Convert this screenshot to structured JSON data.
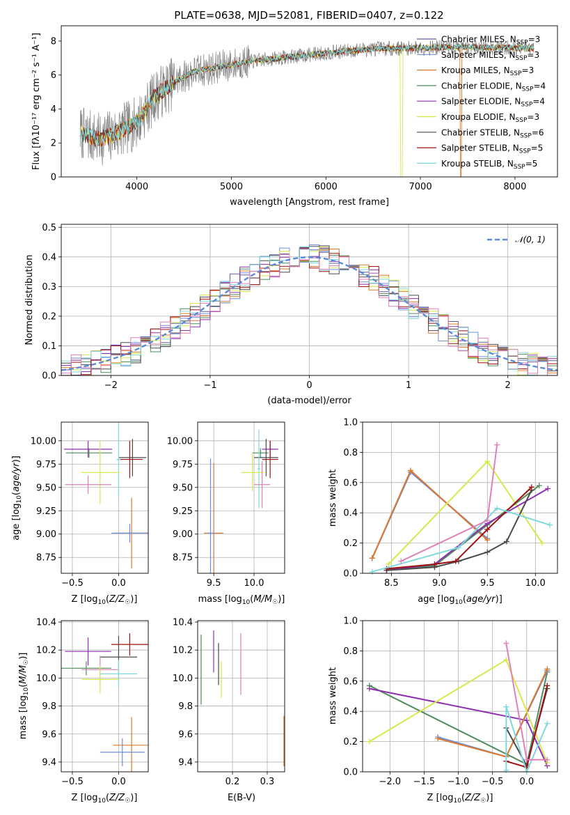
{
  "figure_title": "PLATE=0638, MJD=52081, FIBERID=0407, z=0.122",
  "legend_entries": [
    {
      "name": "Chabrier MILES, N_SSP=3",
      "base": "Chabrier MILES, N",
      "sub": "SSP",
      "tail": "=3",
      "color": "#5f5f9f"
    },
    {
      "name": "Salpeter MILES, N_SSP=3",
      "base": "Salpeter MILES, N",
      "sub": "SSP",
      "tail": "=3",
      "color": "#6b8ee0"
    },
    {
      "name": "Kroupa MILES, N_SSP=3",
      "base": "Kroupa MILES, N",
      "sub": "SSP",
      "tail": "=3",
      "color": "#e0782a"
    },
    {
      "name": "Chabrier ELODIE, N_SSP=4",
      "base": "Chabrier ELODIE, N",
      "sub": "SSP",
      "tail": "=4",
      "color": "#4f8a5a"
    },
    {
      "name": "Salpeter ELODIE, N_SSP=4",
      "base": "Salpeter ELODIE, N",
      "sub": "SSP",
      "tail": "=4",
      "color": "#8e2fb0"
    },
    {
      "name": "Kroupa ELODIE, N_SSP=3",
      "base": "Kroupa ELODIE, N",
      "sub": "SSP",
      "tail": "=3",
      "color": "#d6e84a"
    },
    {
      "name": "Chabrier STELIB, N_SSP=6",
      "base": "Chabrier STELIB, N",
      "sub": "SSP",
      "tail": "=6",
      "color": "#4a4a4a"
    },
    {
      "name": "Salpeter STELIB, N_SSP=5",
      "base": "Salpeter STELIB, N",
      "sub": "SSP",
      "tail": "=5",
      "color": "#a01010"
    },
    {
      "name": "Kroupa STELIB, N_SSP=5",
      "base": "Kroupa STELIB, N",
      "sub": "SSP",
      "tail": "=5",
      "color": "#7fd8dc"
    }
  ],
  "extra_colors": {
    "data": "#808080",
    "pink": "#e07fb8"
  },
  "chart_data": [
    {
      "id": "spectrum",
      "type": "line",
      "title": "PLATE=0638, MJD=52081, FIBERID=0407, z=0.122",
      "xlabel": "wavelength [Angstrom, rest frame]",
      "ylabel": "Flux [f_λ 10^-17 erg cm^-2 s^-1 A^-1]",
      "xlim": [
        3200,
        8450
      ],
      "ylim": [
        0,
        8.9
      ],
      "xticks": [
        4000,
        5000,
        6000,
        7000,
        8000
      ],
      "yticks": [
        0,
        2,
        4,
        6,
        8
      ],
      "continuum": {
        "x": [
          3400,
          3600,
          3800,
          4000,
          4200,
          4400,
          4600,
          4800,
          5000,
          5200,
          5500,
          6000,
          6500,
          7000,
          7500,
          8000,
          8200
        ],
        "y": [
          2.6,
          2.2,
          2.6,
          3.2,
          4.8,
          5.6,
          6.2,
          6.4,
          6.6,
          6.8,
          7.0,
          7.3,
          7.55,
          7.6,
          7.65,
          7.6,
          7.55
        ]
      },
      "grid": false
    },
    {
      "id": "residuals",
      "type": "step",
      "xlabel": "(data-model)/error",
      "ylabel": "Normed distribution",
      "xlim": [
        -2.5,
        2.5
      ],
      "ylim": [
        0,
        0.51
      ],
      "xticks": [
        -2,
        -1,
        0,
        1,
        2
      ],
      "yticks": [
        0.0,
        0.1,
        0.2,
        0.3,
        0.4,
        0.5
      ],
      "gauss_label": "𝒩(0, 1)",
      "grid": true
    },
    {
      "id": "age_vs_Z",
      "type": "errorbar",
      "xlabel": "Z [log10(Z/Z☉)]",
      "ylabel": "age [log10(age/yr)]",
      "xlim": [
        -0.62,
        0.32
      ],
      "ylim": [
        8.58,
        10.2
      ],
      "xticks": [
        -0.5,
        0.0
      ],
      "yticks": [
        8.75,
        9.0,
        9.25,
        9.5,
        9.75,
        10.0
      ],
      "points": [
        {
          "color": "#8e2fb0",
          "x": -0.33,
          "y": 9.91,
          "xerr": 0.26,
          "yerr": 0.09
        },
        {
          "color": "#4f8a5a",
          "x": -0.32,
          "y": 9.87,
          "xerr": 0.25,
          "yerr": 0.05
        },
        {
          "color": "#4a4a4a",
          "x": 0.15,
          "y": 9.82,
          "xerr": 0.15,
          "yerr": 0.2
        },
        {
          "color": "#a01010",
          "x": 0.12,
          "y": 9.8,
          "xerr": 0.14,
          "yerr": 0.2
        },
        {
          "color": "#7fd8dc",
          "x": 0.0,
          "y": 9.8,
          "xerr": 0.02,
          "yerr": 0.4
        },
        {
          "color": "#d6e84a",
          "x": -0.2,
          "y": 9.66,
          "xerr": 0.2,
          "yerr": 0.34
        },
        {
          "color": "#e07fb8",
          "x": -0.33,
          "y": 9.53,
          "xerr": 0.25,
          "yerr": 0.1
        },
        {
          "color": "#e0782a",
          "x": 0.14,
          "y": 9.01,
          "xerr": 0.18,
          "yerr": 0.38
        },
        {
          "color": "#6b8ee0",
          "x": 0.12,
          "y": 9.01,
          "xerr": 0.2,
          "yerr": 0.1
        }
      ]
    },
    {
      "id": "age_vs_mass",
      "type": "errorbar",
      "xlabel": "mass [log10(M/M☉)]",
      "ylabel": "",
      "xlim": [
        9.3,
        10.38
      ],
      "ylim": [
        8.58,
        10.2
      ],
      "xticks": [
        9.5,
        10.0
      ],
      "yticks": [
        8.75,
        9.0,
        9.25,
        9.5,
        9.75,
        10.0
      ],
      "points": [
        {
          "color": "#8e2fb0",
          "x": 10.2,
          "y": 9.91,
          "xerr": 0.1,
          "yerr": 0.09
        },
        {
          "color": "#4f8a5a",
          "x": 10.08,
          "y": 9.87,
          "xerr": 0.1,
          "yerr": 0.05
        },
        {
          "color": "#4a4a4a",
          "x": 10.15,
          "y": 9.82,
          "xerr": 0.15,
          "yerr": 0.2
        },
        {
          "color": "#a01010",
          "x": 10.2,
          "y": 9.8,
          "xerr": 0.1,
          "yerr": 0.2
        },
        {
          "color": "#7fd8dc",
          "x": 10.06,
          "y": 9.7,
          "xerr": 0.02,
          "yerr": 0.42
        },
        {
          "color": "#d6e84a",
          "x": 9.98,
          "y": 9.66,
          "xerr": 0.14,
          "yerr": 0.2
        },
        {
          "color": "#e07fb8",
          "x": 10.1,
          "y": 9.53,
          "xerr": 0.1,
          "yerr": 0.25
        },
        {
          "color": "#e0782a",
          "x": 9.5,
          "y": 9.01,
          "xerr": 0.12,
          "yerr": 0.75
        },
        {
          "color": "#6b8ee0",
          "x": 9.46,
          "y": 9.01,
          "xerr": 0.04,
          "yerr": 0.8
        }
      ]
    },
    {
      "id": "weight_vs_age",
      "type": "line",
      "xlabel": "age [log10(age/yr)]",
      "ylabel": "mass weight",
      "xlim": [
        8.2,
        10.23
      ],
      "ylim": [
        0,
        1
      ],
      "xticks": [
        8.5,
        9.0,
        9.5,
        10.0
      ],
      "yticks": [
        0.0,
        0.2,
        0.4,
        0.6,
        0.8,
        1.0
      ],
      "series": [
        {
          "color": "#5f5f9f",
          "x": [
            8.3,
            8.7,
            9.5
          ],
          "y": [
            0.1,
            0.67,
            0.23
          ]
        },
        {
          "color": "#6b8ee0",
          "x": [
            8.3,
            8.7,
            9.5
          ],
          "y": [
            0.1,
            0.67,
            0.23
          ]
        },
        {
          "color": "#e0782a",
          "x": [
            8.3,
            8.7,
            9.5
          ],
          "y": [
            0.1,
            0.68,
            0.22
          ]
        },
        {
          "color": "#d6e84a",
          "x": [
            8.47,
            9.5,
            10.07
          ],
          "y": [
            0.06,
            0.74,
            0.2
          ]
        },
        {
          "color": "#4f8a5a",
          "x": [
            8.45,
            8.95,
            9.5,
            10.04
          ],
          "y": [
            0.02,
            0.05,
            0.32,
            0.58
          ]
        },
        {
          "color": "#8e2fb0",
          "x": [
            8.45,
            8.95,
            9.5,
            10.13
          ],
          "y": [
            0.02,
            0.06,
            0.33,
            0.56
          ]
        },
        {
          "color": "#4a4a4a",
          "x": [
            8.45,
            8.95,
            9.2,
            9.5,
            9.7,
            9.96
          ],
          "y": [
            0.02,
            0.04,
            0.08,
            0.14,
            0.21,
            0.55
          ]
        },
        {
          "color": "#a01010",
          "x": [
            8.45,
            8.95,
            9.17,
            9.5,
            9.96
          ],
          "y": [
            0.03,
            0.06,
            0.08,
            0.29,
            0.57
          ]
        },
        {
          "color": "#7fd8dc",
          "x": [
            8.3,
            9.2,
            9.6,
            10.15
          ],
          "y": [
            0.01,
            0.17,
            0.43,
            0.32
          ]
        },
        {
          "color": "#e07fb8",
          "x": [
            8.6,
            9.5,
            9.6
          ],
          "y": [
            0.08,
            0.35,
            0.85
          ]
        }
      ]
    },
    {
      "id": "mass_vs_Z",
      "type": "errorbar",
      "xlabel": "Z [log10(Z/Z☉)]",
      "ylabel": "mass [log10(M/M☉)]",
      "xlim": [
        -0.62,
        0.32
      ],
      "ylim": [
        9.33,
        10.41
      ],
      "xticks": [
        -0.5,
        0.0
      ],
      "yticks": [
        9.4,
        9.6,
        9.8,
        10.0,
        10.2,
        10.4
      ],
      "points": [
        {
          "color": "#a01010",
          "x": 0.12,
          "y": 10.24,
          "xerr": 0.2,
          "yerr": 0.08
        },
        {
          "color": "#8e2fb0",
          "x": -0.33,
          "y": 10.19,
          "xerr": 0.25,
          "yerr": 0.1
        },
        {
          "color": "#4a4a4a",
          "x": 0.0,
          "y": 10.15,
          "xerr": 0.2,
          "yerr": 0.15
        },
        {
          "color": "#4f8a5a",
          "x": -0.35,
          "y": 10.07,
          "xerr": 0.27,
          "yerr": 0.05
        },
        {
          "color": "#e07fb8",
          "x": -0.2,
          "y": 10.06,
          "xerr": 0.2,
          "yerr": 0.1
        },
        {
          "color": "#7fd8dc",
          "x": 0.0,
          "y": 10.03,
          "xerr": 0.2,
          "yerr": 0.1
        },
        {
          "color": "#d6e84a",
          "x": -0.2,
          "y": 9.99,
          "xerr": 0.2,
          "yerr": 0.1
        },
        {
          "color": "#e0782a",
          "x": 0.14,
          "y": 9.52,
          "xerr": 0.2,
          "yerr": 0.2
        },
        {
          "color": "#6b8ee0",
          "x": 0.04,
          "y": 9.47,
          "xerr": 0.24,
          "yerr": 0.1
        }
      ]
    },
    {
      "id": "mass_vs_ebv",
      "type": "errorbar",
      "xlabel": "E(B-V)",
      "ylabel": "",
      "xlim": [
        0.1,
        0.35
      ],
      "ylim": [
        9.33,
        10.41
      ],
      "xticks": [
        0.2,
        0.3
      ],
      "yticks": [
        9.4,
        9.6,
        9.8,
        10.0,
        10.2,
        10.4
      ],
      "points": [
        {
          "color": "#4f8a5a",
          "x": 0.11,
          "y": 10.06,
          "xerr": 0.0,
          "yerr": 0.25
        },
        {
          "color": "#8e2fb0",
          "x": 0.146,
          "y": 10.19,
          "xerr": 0.0,
          "yerr": 0.15
        },
        {
          "color": "#4a4a4a",
          "x": 0.16,
          "y": 10.1,
          "xerr": 0.0,
          "yerr": 0.15
        },
        {
          "color": "#d6e84a",
          "x": 0.168,
          "y": 9.99,
          "xerr": 0.0,
          "yerr": 0.13
        },
        {
          "color": "#e07fb8",
          "x": 0.224,
          "y": 10.1,
          "xerr": 0.0,
          "yerr": 0.22
        },
        {
          "color": "#e0782a",
          "x": 0.348,
          "y": 9.55,
          "xerr": 0.0,
          "yerr": 0.18
        }
      ]
    },
    {
      "id": "weight_vs_Z",
      "type": "line",
      "xlabel": "Z [log10(Z/Z☉)]",
      "ylabel": "mass weight",
      "xlim": [
        -2.4,
        0.45
      ],
      "ylim": [
        0,
        1
      ],
      "xticks": [
        -2.0,
        -1.5,
        -1.0,
        -0.5,
        0.0
      ],
      "yticks": [
        0.0,
        0.2,
        0.4,
        0.6,
        0.8,
        1.0
      ],
      "series": [
        {
          "color": "#4f8a5a",
          "x": [
            -2.3,
            0.0,
            0.3
          ],
          "y": [
            0.57,
            0.05,
            0.66
          ]
        },
        {
          "color": "#8e2fb0",
          "x": [
            -2.3,
            0.0,
            0.3
          ],
          "y": [
            0.55,
            0.34,
            0.04
          ]
        },
        {
          "color": "#6b8ee0",
          "x": [
            -1.3,
            -0.3,
            0.3
          ],
          "y": [
            0.23,
            0.1,
            0.67
          ]
        },
        {
          "color": "#e0782a",
          "x": [
            -1.3,
            -0.3,
            0.3
          ],
          "y": [
            0.22,
            0.1,
            0.68
          ]
        },
        {
          "color": "#d6e84a",
          "x": [
            -2.3,
            -0.3,
            0.3
          ],
          "y": [
            0.2,
            0.74,
            0.06
          ]
        },
        {
          "color": "#4a4a4a",
          "x": [
            -0.3,
            0.0,
            0.3
          ],
          "y": [
            0.29,
            0.04,
            0.55
          ]
        },
        {
          "color": "#a01010",
          "x": [
            -0.3,
            0.0,
            0.3
          ],
          "y": [
            0.07,
            0.03,
            0.57
          ]
        },
        {
          "color": "#7fd8dc",
          "x": [
            -0.3,
            -0.3,
            0.0,
            0.3
          ],
          "y": [
            0.01,
            0.43,
            0.0,
            0.32
          ]
        },
        {
          "color": "#e07fb8",
          "x": [
            -0.3,
            0.0,
            0.3
          ],
          "y": [
            0.85,
            0.08,
            0.08
          ]
        }
      ]
    }
  ]
}
